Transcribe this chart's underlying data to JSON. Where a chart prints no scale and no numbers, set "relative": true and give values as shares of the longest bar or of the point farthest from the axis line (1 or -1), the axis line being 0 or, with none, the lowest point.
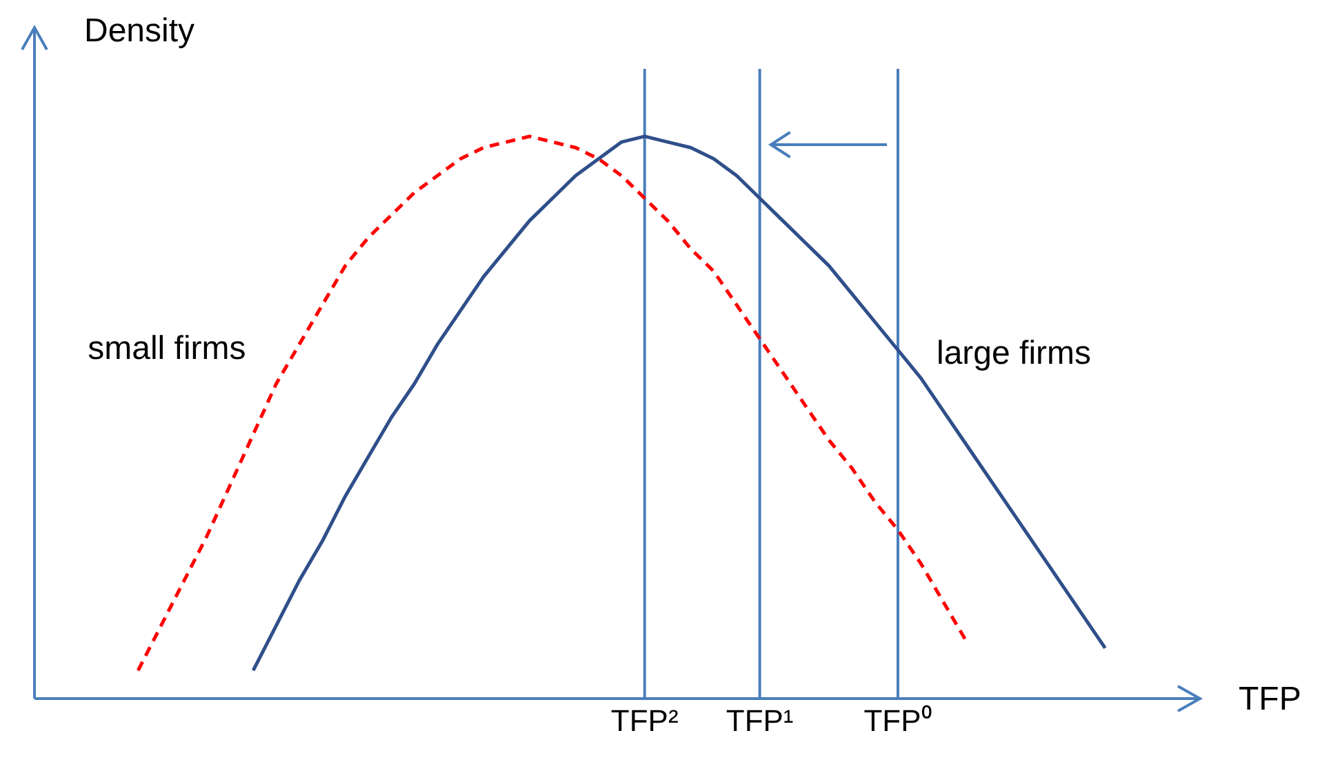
{
  "chart_data": {
    "type": "line",
    "relative": true,
    "xlabel": "TFP",
    "ylabel": "Density",
    "tick_labels": "x",
    "grid": false,
    "legend": false,
    "marker": "none",
    "categories": [
      null,
      null,
      null,
      null,
      null,
      null,
      null,
      null,
      null,
      null,
      null,
      null,
      null,
      null,
      null,
      null,
      null,
      null,
      null,
      null,
      null,
      null,
      "TFP²",
      null,
      null,
      null,
      null,
      "TFP¹",
      null,
      null,
      null,
      null,
      null,
      "TFP⁰",
      null,
      null,
      null,
      null,
      null,
      null,
      null,
      null,
      null
    ],
    "series": [
      {
        "name": "small firms",
        "color": "#ff0000",
        "line_style": "dashed",
        "values": [
          0.05,
          0.13,
          0.21,
          0.29,
          0.38,
          0.47,
          0.56,
          0.63,
          0.7,
          0.77,
          0.82,
          0.86,
          0.9,
          0.93,
          0.96,
          0.98,
          0.99,
          1.0,
          0.99,
          0.98,
          0.96,
          0.93,
          0.89,
          0.85,
          0.8,
          0.76,
          0.7,
          0.64,
          0.58,
          0.52,
          0.46,
          0.41,
          0.35,
          0.3,
          0.24,
          0.17,
          0.1,
          null,
          null,
          null,
          null,
          null,
          null
        ]
      },
      {
        "name": "large firms",
        "color": "#2f4f8a",
        "line_style": "solid",
        "values": [
          null,
          null,
          null,
          null,
          null,
          0.05,
          0.13,
          0.21,
          0.28,
          0.36,
          0.43,
          0.5,
          0.56,
          0.63,
          0.69,
          0.75,
          0.8,
          0.85,
          0.89,
          0.93,
          0.96,
          0.99,
          1.0,
          0.99,
          0.98,
          0.96,
          0.93,
          0.89,
          0.85,
          0.81,
          0.77,
          0.72,
          0.67,
          0.62,
          0.57,
          0.51,
          0.45,
          0.39,
          0.33,
          0.27,
          0.21,
          0.15,
          0.09
        ]
      }
    ],
    "ref_lines": [
      {
        "axis": "x",
        "value": "TFP²",
        "color": "#4a7ebb"
      },
      {
        "axis": "x",
        "value": "TFP¹",
        "color": "#4a7ebb"
      },
      {
        "axis": "x",
        "value": "TFP⁰",
        "color": "#4a7ebb"
      }
    ]
  }
}
